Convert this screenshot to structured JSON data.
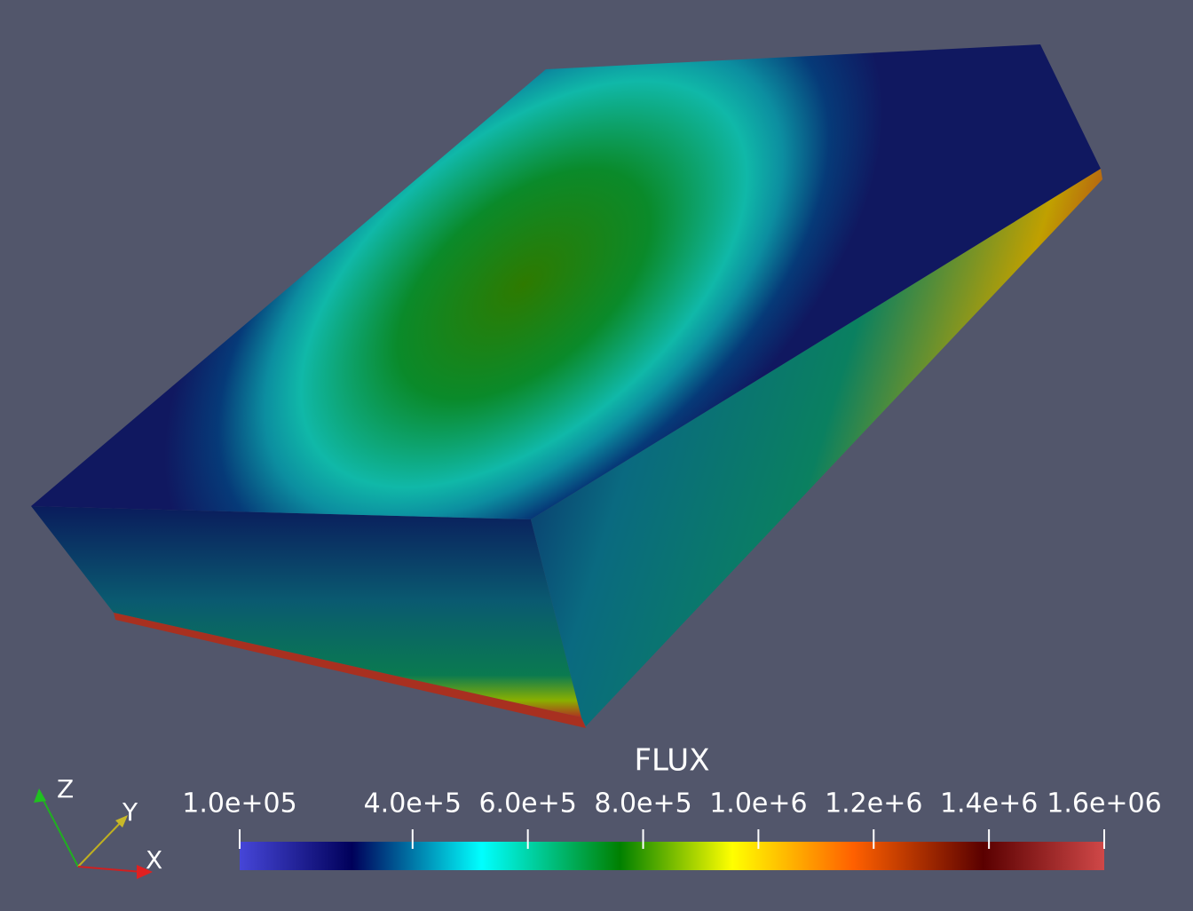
{
  "color_legend": {
    "title": "FLUX",
    "range": [
      100000,
      1600000
    ],
    "ticks": [
      {
        "value": 100000,
        "label": "1.0e+05"
      },
      {
        "value": 400000,
        "label": "4.0e+5"
      },
      {
        "value": 600000,
        "label": "6.0e+5"
      },
      {
        "value": 800000,
        "label": "8.0e+5"
      },
      {
        "value": 1000000,
        "label": "1.0e+6"
      },
      {
        "value": 1200000,
        "label": "1.2e+6"
      },
      {
        "value": 1400000,
        "label": "1.4e+6"
      },
      {
        "value": 1600000,
        "label": "1.6e+06"
      }
    ]
  },
  "orientation_axes": {
    "z": "Z",
    "y": "Y",
    "x": "X"
  }
}
